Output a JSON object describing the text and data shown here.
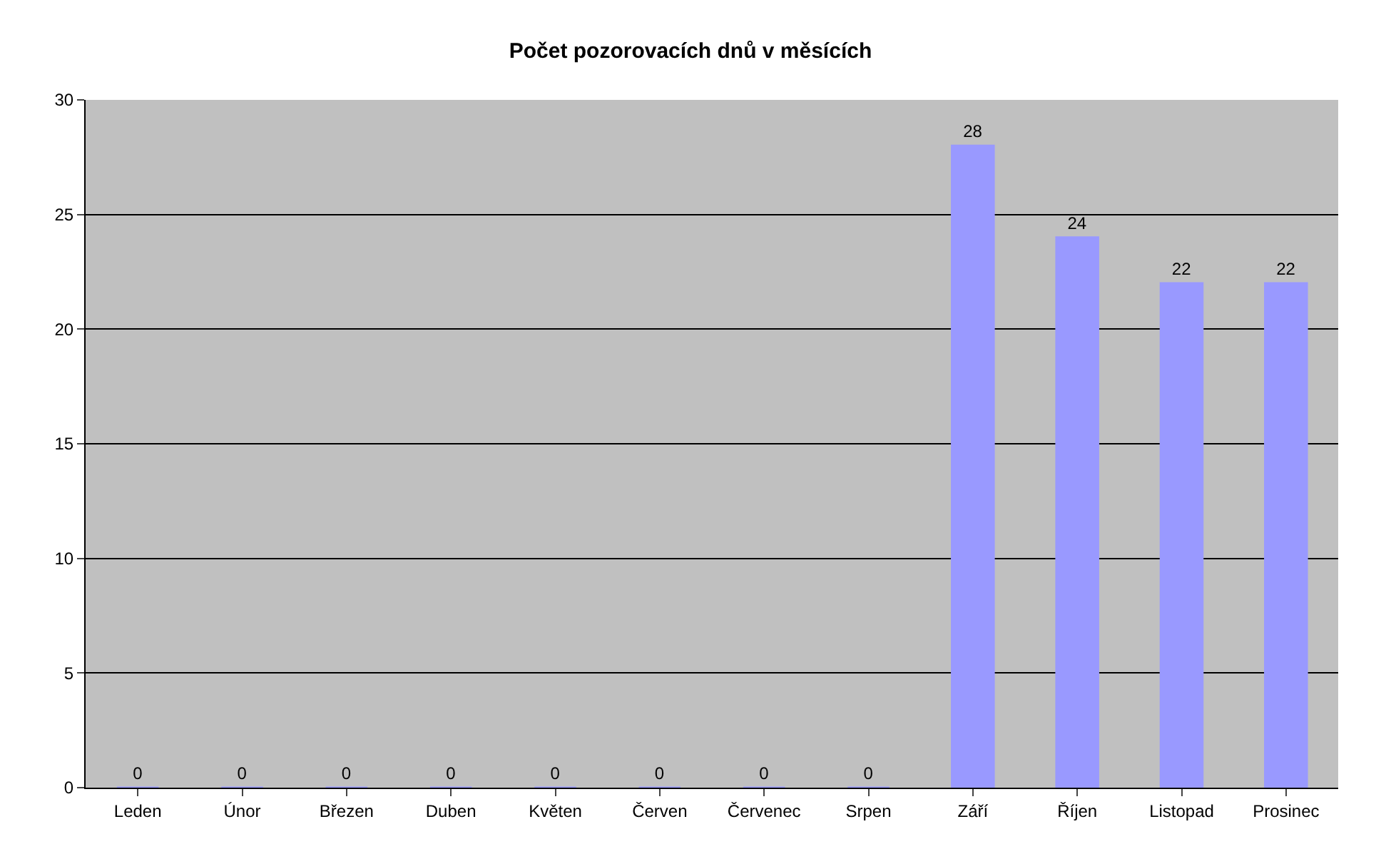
{
  "chart_data": {
    "type": "bar",
    "title": "Počet pozorovacích dnů v měsících",
    "categories": [
      "Leden",
      "Únor",
      "Březen",
      "Duben",
      "Květen",
      "Červen",
      "Červenec",
      "Srpen",
      "Září",
      "Říjen",
      "Listopad",
      "Prosinec"
    ],
    "values": [
      0,
      0,
      0,
      0,
      0,
      0,
      0,
      0,
      28,
      24,
      22,
      22
    ],
    "color": "#9999ff",
    "ylim": [
      0,
      30
    ],
    "yticks": [
      0,
      5,
      10,
      15,
      20,
      25,
      30
    ],
    "grid": "y",
    "data_labels": true
  }
}
